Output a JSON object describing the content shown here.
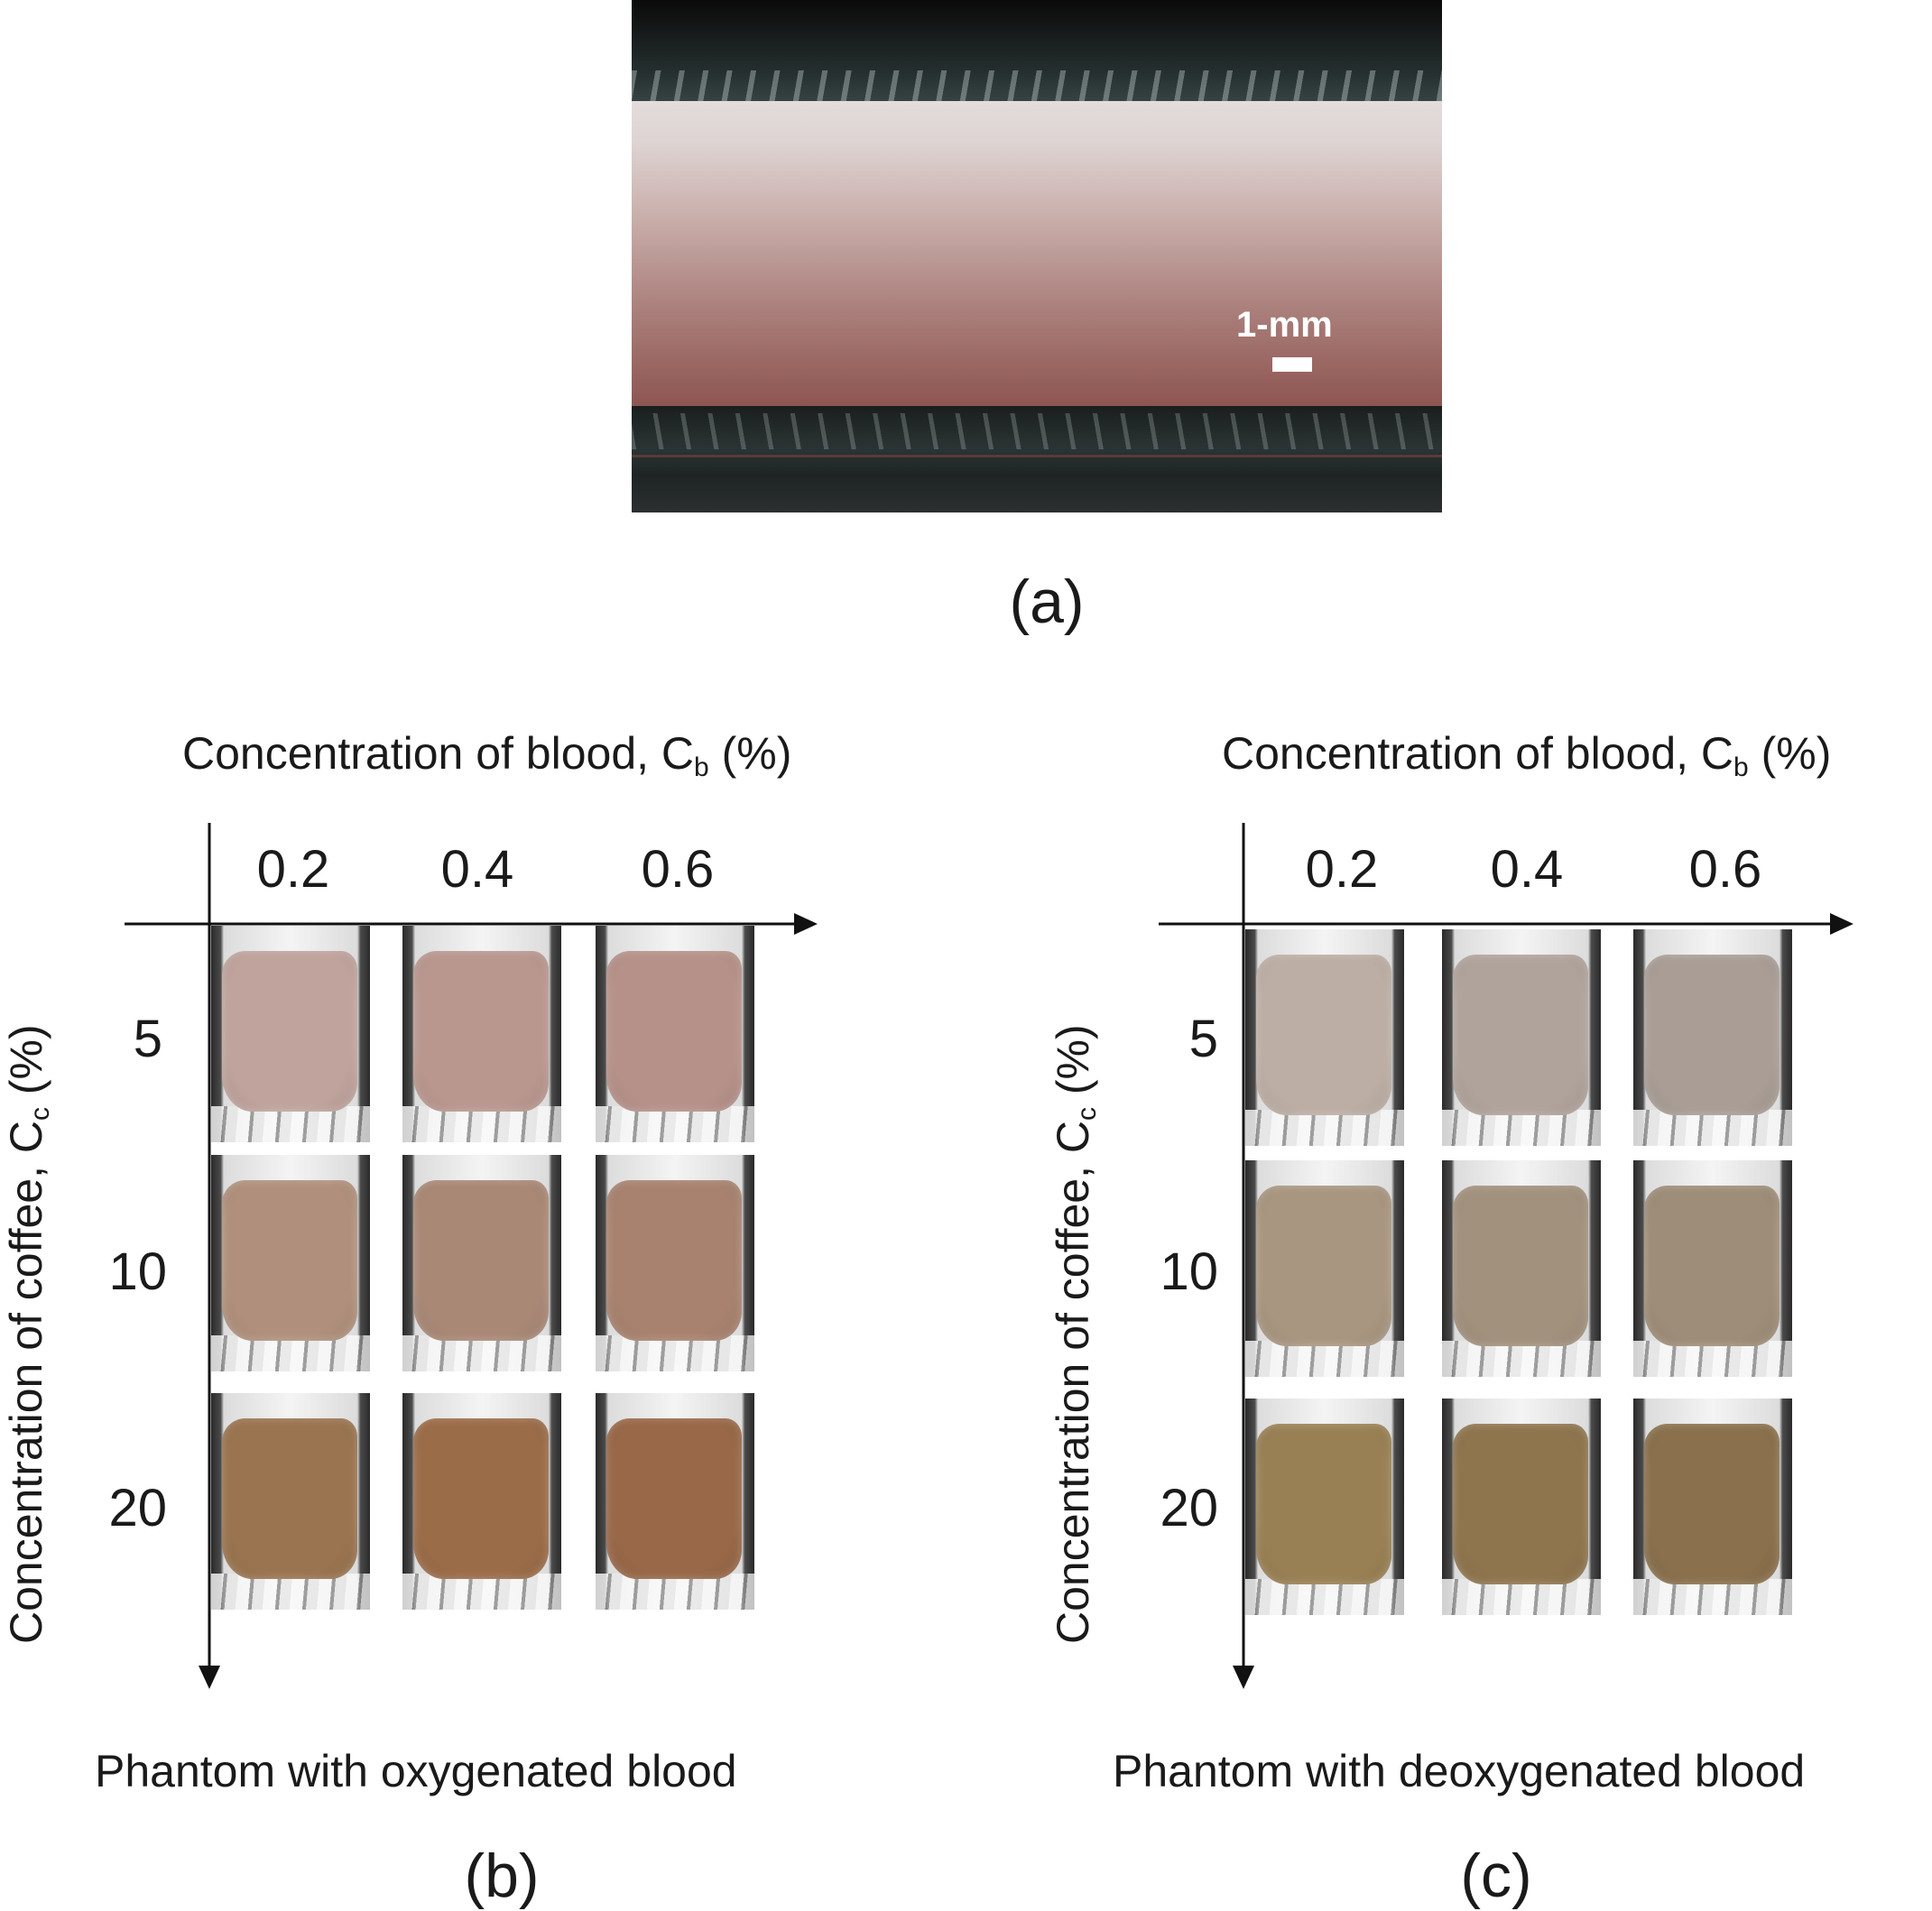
{
  "panel_a": {
    "scale_label": "1-mm",
    "letter": "(a)"
  },
  "panel_b": {
    "x_title": "Concentration of blood, C",
    "x_title_sub": "b",
    "x_title_unit": " (%)",
    "y_title": "Concentration of coffee, C",
    "y_title_sub": "c",
    "y_title_unit": " (%)",
    "x_ticks": [
      "0.2",
      "0.4",
      "0.6"
    ],
    "y_ticks": [
      "5",
      "10",
      "20"
    ],
    "caption": "Phantom with oxygenated blood",
    "letter": "(b)",
    "swatch_colors": [
      [
        "#bfa39c",
        "#b9978f",
        "#b59189"
      ],
      [
        "#b0907c",
        "#a98876",
        "#a8826f"
      ],
      [
        "#9a7450",
        "#9b6c48",
        "#986848"
      ]
    ]
  },
  "panel_c": {
    "x_title": "Concentration of blood, C",
    "x_title_sub": "b",
    "x_title_unit": " (%)",
    "y_title": "Concentration of coffee, C",
    "y_title_sub": "c",
    "y_title_unit": " (%)",
    "x_ticks": [
      "0.2",
      "0.4",
      "0.6"
    ],
    "y_ticks": [
      "5",
      "10",
      "20"
    ],
    "caption": "Phantom with deoxygenated blood",
    "letter": "(c)",
    "swatch_colors": [
      [
        "#bcaea4",
        "#b0a39b",
        "#a99d96"
      ],
      [
        "#a89680",
        "#a2917d",
        "#9e8d78"
      ],
      [
        "#998054",
        "#8f754e",
        "#8a704c"
      ]
    ]
  }
}
